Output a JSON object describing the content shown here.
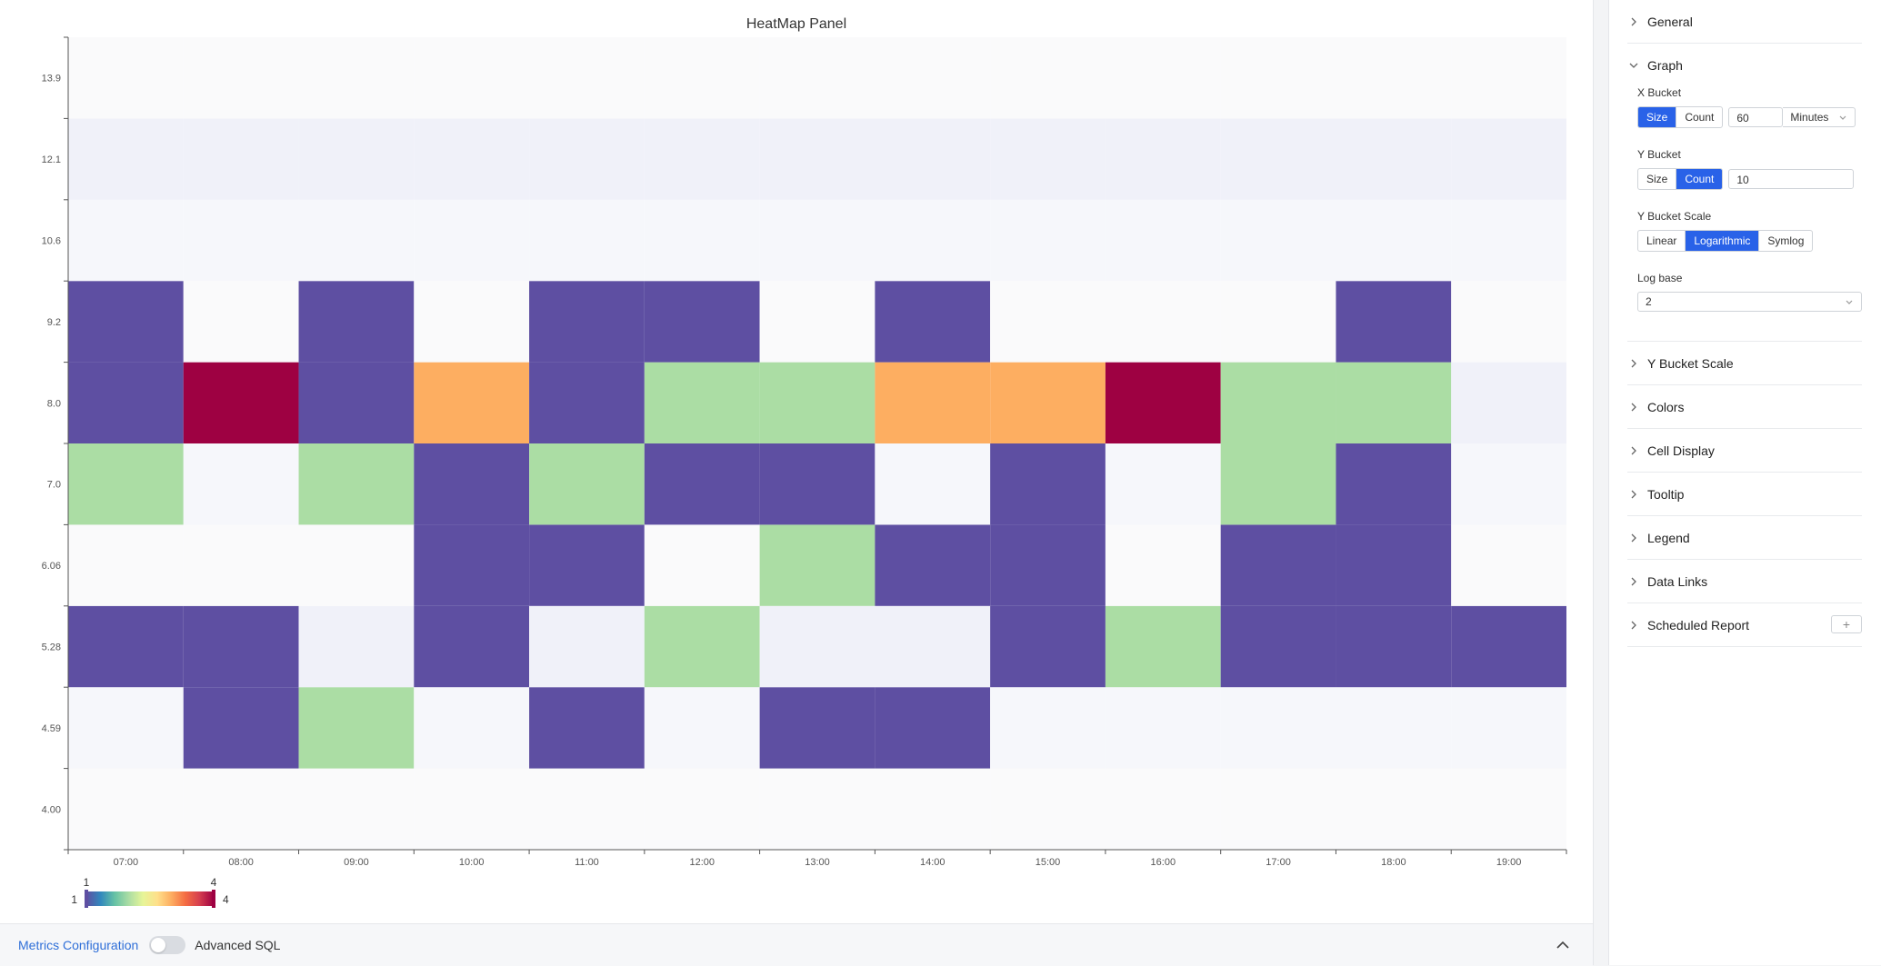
{
  "panel": {
    "title": "HeatMap Panel"
  },
  "chart_data": {
    "type": "heatmap",
    "title": "HeatMap Panel",
    "x_categories": [
      "07:00",
      "08:00",
      "09:00",
      "10:00",
      "11:00",
      "12:00",
      "13:00",
      "14:00",
      "15:00",
      "16:00",
      "17:00",
      "18:00",
      "19:00"
    ],
    "y_categories": [
      "4.00",
      "4.59",
      "5.28",
      "6.06",
      "7.0",
      "8.0",
      "9.2",
      "10.6",
      "12.1",
      "13.9"
    ],
    "values": [
      [
        0,
        0,
        0,
        0,
        0,
        0,
        0,
        0,
        0,
        0,
        0,
        0,
        0
      ],
      [
        0,
        1,
        2,
        0,
        1,
        0,
        1,
        1,
        0,
        0,
        0,
        0,
        0
      ],
      [
        1,
        1,
        0,
        1,
        0,
        2,
        0,
        0,
        1,
        2,
        1,
        1,
        1
      ],
      [
        0,
        0,
        0,
        1,
        1,
        0,
        2,
        1,
        1,
        0,
        1,
        1,
        0
      ],
      [
        2,
        0,
        2,
        1,
        2,
        1,
        1,
        0,
        1,
        0,
        2,
        1,
        0
      ],
      [
        1,
        4,
        1,
        3,
        1,
        2,
        2,
        3,
        3,
        4,
        2,
        2,
        0
      ],
      [
        1,
        0,
        1,
        0,
        1,
        1,
        0,
        1,
        0,
        0,
        0,
        1,
        0
      ],
      [
        0,
        0,
        0,
        0,
        0,
        0,
        0,
        0,
        0,
        0,
        0,
        0,
        0
      ],
      [
        0,
        0,
        0,
        0,
        0,
        0,
        0,
        0,
        0,
        0,
        0,
        0,
        0
      ],
      [
        0,
        0,
        0,
        0,
        0,
        0,
        0,
        0,
        0,
        0,
        0,
        0,
        0
      ]
    ],
    "color_scale": {
      "min": 1,
      "max": 4,
      "palette": [
        "#5e4fa2",
        "#abdda4",
        "#fdae61",
        "#9e0142"
      ],
      "empty_colors": [
        "#fafafb",
        "#f6f7fb",
        "#f0f1f9"
      ]
    },
    "legend": {
      "min_label": "1",
      "max_label": "4",
      "placement": "bottom-left"
    }
  },
  "bottom_bar": {
    "metrics_label": "Metrics Configuration",
    "advanced_sql_label": "Advanced SQL"
  },
  "sidebar": {
    "general": "General",
    "graph": {
      "title": "Graph",
      "x_bucket": {
        "label": "X Bucket",
        "size": "Size",
        "count": "Count",
        "value": "60",
        "unit": "Minutes"
      },
      "y_bucket": {
        "label": "Y Bucket",
        "size": "Size",
        "count": "Count",
        "value": "10"
      },
      "y_bucket_scale": {
        "label": "Y Bucket Scale",
        "linear": "Linear",
        "logarithmic": "Logarithmic",
        "symlog": "Symlog"
      },
      "log_base": {
        "label": "Log base",
        "value": "2"
      }
    },
    "sections": [
      "Y Bucket Scale",
      "Colors",
      "Cell Display",
      "Tooltip",
      "Legend",
      "Data Links",
      "Scheduled Report"
    ],
    "plus": "+"
  }
}
